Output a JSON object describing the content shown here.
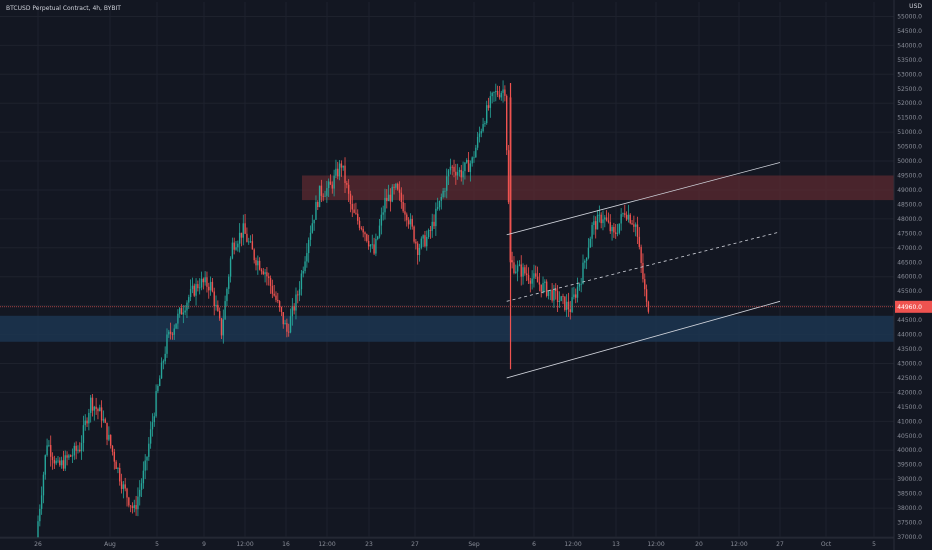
{
  "header": {
    "title": "BTCUSD Perpetual Contract, 4h, BYBIT"
  },
  "chart_data": {
    "type": "candlestick",
    "title": "BTCUSD Perpetual Contract, 4h, BYBIT",
    "y_unit": "USD",
    "ylim": [
      37000,
      55500
    ],
    "y_ticks": [
      37000,
      37500,
      38000,
      38500,
      39000,
      39500,
      40000,
      40500,
      41000,
      41500,
      42000,
      42500,
      43000,
      43500,
      44000,
      44500,
      45000,
      45500,
      46000,
      46500,
      47000,
      47500,
      48000,
      48500,
      49000,
      49500,
      50000,
      50500,
      51000,
      51500,
      52000,
      52500,
      53000,
      53500,
      54000,
      54500,
      55000,
      55500
    ],
    "x_ticks": [
      "26",
      "Aug",
      "5",
      "9",
      "12:00",
      "16",
      "12:00",
      "23",
      "27",
      "Sep",
      "6",
      "12:00",
      "13",
      "12:00",
      "20",
      "12:00",
      "27",
      "Oct",
      "5"
    ],
    "current_price": 44960,
    "price_path": [
      [
        "Jul 26",
        37000
      ],
      [
        "Jul 27",
        40300
      ],
      [
        "Jul 28",
        39400
      ],
      [
        "Jul 30",
        40100
      ],
      [
        "Jul 31",
        41700
      ],
      [
        "Aug 1",
        41200
      ],
      [
        "Aug 3",
        38700
      ],
      [
        "Aug 4",
        37900
      ],
      [
        "Aug 5",
        39400
      ],
      [
        "Aug 6",
        41800
      ],
      [
        "Aug 7",
        43800
      ],
      [
        "Aug 8",
        44600
      ],
      [
        "Aug 9",
        45300
      ],
      [
        "Aug 10",
        45800
      ],
      [
        "Aug 11",
        45700
      ],
      [
        "Aug 12",
        44100
      ],
      [
        "Aug 13",
        47100
      ],
      [
        "Aug 14",
        47600
      ],
      [
        "Aug 15",
        46700
      ],
      [
        "Aug 16",
        46200
      ],
      [
        "Aug 17",
        45200
      ],
      [
        "Aug 18",
        44100
      ],
      [
        "Aug 19",
        45400
      ],
      [
        "Aug 20",
        47400
      ],
      [
        "Aug 21",
        48900
      ],
      [
        "Aug 22",
        49100
      ],
      [
        "Aug 23",
        49900
      ],
      [
        "Aug 24",
        48200
      ],
      [
        "Aug 25",
        47700
      ],
      [
        "Aug 26",
        46800
      ],
      [
        "Aug 27",
        48600
      ],
      [
        "Aug 28",
        49000
      ],
      [
        "Aug 29",
        48200
      ],
      [
        "Aug 30",
        47000
      ],
      [
        "Aug 31",
        47400
      ],
      [
        "Sep 1",
        48500
      ],
      [
        "Sep 2",
        49800
      ],
      [
        "Sep 3",
        49600
      ],
      [
        "Sep 4",
        50000
      ],
      [
        "Sep 5",
        51400
      ],
      [
        "Sep 6",
        52300
      ],
      [
        "Sep 7",
        52500
      ],
      [
        "Sep 7 late",
        46500
      ],
      [
        "Sep 8",
        46300
      ],
      [
        "Sep 9",
        46100
      ],
      [
        "Sep 10",
        45800
      ],
      [
        "Sep 11",
        45500
      ],
      [
        "Sep 12",
        45200
      ],
      [
        "Sep 13",
        44900
      ],
      [
        "Sep 14",
        46000
      ],
      [
        "Sep 15",
        47700
      ],
      [
        "Sep 16",
        48100
      ],
      [
        "Sep 17",
        47400
      ],
      [
        "Sep 18",
        48300
      ],
      [
        "Sep 19",
        47800
      ],
      [
        "Sep 20",
        45000
      ]
    ],
    "series": [
      {
        "name": "",
        "values": []
      }
    ],
    "annotations": {
      "resistance_zone": [
        48650,
        49500
      ],
      "support_zone": [
        43750,
        44650
      ],
      "current_price_line": 44960,
      "channel_upper": [
        [
          "Sep 7",
          47450
        ],
        [
          "Sep 24",
          49950
        ]
      ],
      "channel_mid": [
        [
          "Sep 7",
          45150
        ],
        [
          "Sep 24",
          47550
        ]
      ],
      "channel_lower": [
        [
          "Sep 7",
          42500
        ],
        [
          "Sep 24",
          45150
        ]
      ]
    },
    "colors": {
      "up": "#26a69a",
      "down": "#ef5350",
      "background": "#131722",
      "resistance": "#5c2a30",
      "support": "#1c3550",
      "price_line": "#ef5350"
    },
    "grid": true,
    "axis_side": "right"
  }
}
